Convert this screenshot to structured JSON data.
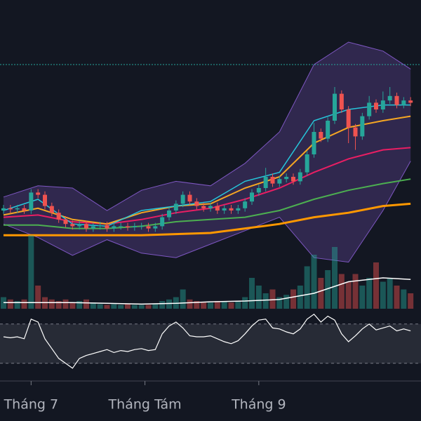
{
  "chart_data": {
    "type": "candlestick",
    "xlim": [
      -0.5,
      59.5
    ],
    "ylim": [
      0,
      100
    ],
    "xticks": [
      {
        "value": 4,
        "label": "Tháng 7"
      },
      {
        "value": 20.5,
        "label": "Tháng Tám"
      },
      {
        "value": 37,
        "label": "Tháng 9"
      }
    ],
    "up_color": "#26a69a",
    "down_color": "#ef5350",
    "open": [
      25,
      26,
      25.5,
      26,
      25,
      33,
      32,
      27,
      24,
      21,
      19,
      18,
      19,
      17,
      18,
      18.5,
      17,
      18,
      18,
      17.5,
      18,
      18,
      17,
      18,
      22,
      25,
      28,
      32,
      29,
      27,
      26,
      27,
      25,
      26,
      25,
      26,
      29,
      33,
      35,
      40,
      37,
      39,
      40,
      38,
      42,
      50,
      60,
      57,
      65,
      77,
      70,
      62,
      58,
      67,
      73,
      70,
      74,
      76,
      72,
      74
    ],
    "high": [
      27.5,
      27.5,
      27.5,
      27.5,
      34.5,
      34.5,
      33.5,
      28.5,
      25.5,
      22.5,
      20.5,
      20.5,
      20.5,
      19.5,
      20,
      20,
      19.5,
      19.5,
      19.5,
      19.5,
      19.5,
      19.5,
      19.5,
      23.5,
      26.5,
      29.5,
      33.5,
      33.5,
      30.5,
      28.5,
      28.5,
      28.5,
      27.5,
      27.5,
      27.5,
      30.5,
      34.5,
      36.5,
      44,
      41.5,
      40.5,
      41.5,
      41.5,
      43.5,
      51.5,
      64,
      61.5,
      66.5,
      80,
      78.5,
      71.5,
      63.5,
      68.5,
      76,
      74.5,
      78,
      80,
      77.5,
      75.5,
      75.5
    ],
    "low": [
      23.5,
      24,
      24,
      23.5,
      23.5,
      30.5,
      25.5,
      22.5,
      19.5,
      17.5,
      16.5,
      16.5,
      15.5,
      15.5,
      16.5,
      15.5,
      15.5,
      16.5,
      16,
      16,
      16.5,
      15.5,
      15.5,
      16.5,
      20.5,
      23.5,
      26.5,
      27.5,
      25.5,
      24.5,
      24.5,
      23.5,
      23.5,
      23.5,
      23.5,
      24.5,
      27.5,
      31.5,
      33.5,
      35.5,
      35.5,
      37.5,
      36.5,
      36.5,
      40.5,
      48.5,
      55.5,
      55.5,
      63.5,
      68.5,
      55,
      52,
      56.5,
      65.5,
      68.5,
      68.5,
      72.5,
      70.5,
      70.5,
      71.5
    ],
    "close": [
      26,
      25.5,
      26,
      25,
      33,
      32,
      27,
      24,
      21,
      19,
      18,
      19,
      17,
      18,
      18.5,
      17,
      18,
      18,
      17.5,
      18,
      18,
      17,
      18,
      22,
      25,
      28,
      32,
      29,
      27,
      26,
      27,
      25,
      26,
      25,
      26,
      29,
      33,
      35,
      40,
      37,
      39,
      40,
      38,
      42,
      50,
      60,
      57,
      65,
      77,
      70,
      62,
      58,
      67,
      73,
      70,
      74,
      76,
      72,
      74,
      73
    ],
    "line_x": [
      0,
      5,
      10,
      15,
      20,
      25,
      30,
      35,
      40,
      45,
      50,
      55,
      59
    ],
    "band": {
      "color": "#7e57c2",
      "upper": [
        31,
        36,
        35,
        25,
        34,
        38,
        36,
        46,
        60,
        90,
        100,
        96,
        88
      ],
      "lower": [
        19,
        13,
        5,
        12,
        6,
        4,
        10,
        16,
        22,
        4,
        2,
        25,
        47
      ]
    },
    "lines": [
      {
        "color": "#ff9800",
        "width": 3,
        "values": [
          14,
          14,
          14,
          14,
          14,
          14.5,
          15,
          17,
          19,
          22,
          24,
          27,
          28
        ]
      },
      {
        "color": "#4caf50",
        "width": 2,
        "values": [
          18.5,
          18.5,
          17,
          17,
          18,
          20,
          21,
          22,
          25,
          30,
          34,
          37,
          39
        ]
      },
      {
        "color": "#e91e63",
        "width": 2,
        "values": [
          22,
          23,
          20,
          19,
          21,
          24,
          26,
          30,
          35,
          42,
          48,
          52,
          53
        ]
      },
      {
        "color": "#f5a623",
        "width": 2,
        "values": [
          23,
          26,
          21,
          19,
          24,
          27,
          28,
          35,
          40,
          55,
          62,
          65,
          67
        ]
      },
      {
        "color": "#26c6da",
        "width": 1.5,
        "values": [
          25,
          30,
          19,
          18,
          25,
          27,
          29,
          38,
          42,
          65,
          70,
          72,
          72
        ]
      }
    ],
    "level": {
      "value": 90,
      "color": "#26a69a"
    },
    "volume": {
      "ylim": [
        0,
        100
      ],
      "ma_color": "#ffffff",
      "values": [
        15,
        12,
        10,
        12,
        95,
        30,
        15,
        12,
        10,
        12,
        8,
        10,
        12,
        8,
        6,
        5,
        6,
        5,
        6,
        5,
        5,
        5,
        6,
        10,
        12,
        15,
        25,
        12,
        10,
        8,
        8,
        10,
        10,
        8,
        10,
        15,
        40,
        30,
        20,
        25,
        15,
        18,
        25,
        30,
        55,
        70,
        40,
        50,
        80,
        45,
        35,
        45,
        30,
        40,
        60,
        35,
        40,
        30,
        25,
        20
      ],
      "ma_values": [
        8,
        8,
        8,
        7,
        6,
        7,
        9,
        10,
        12,
        20,
        35,
        40,
        38
      ]
    },
    "oscillator": {
      "ylim": [
        12,
        82
      ],
      "levels": [
        70,
        30
      ],
      "color": "#ffffff",
      "values": [
        57,
        56,
        57,
        55,
        75,
        72,
        55,
        45,
        35,
        30,
        25,
        35,
        38,
        40,
        42,
        44,
        41,
        43,
        42,
        44,
        45,
        43,
        44,
        60,
        68,
        72,
        66,
        58,
        57,
        57,
        58,
        55,
        52,
        50,
        53,
        60,
        68,
        74,
        75,
        66,
        65,
        62,
        60,
        65,
        75,
        80,
        72,
        78,
        74,
        60,
        52,
        58,
        65,
        70,
        64,
        66,
        68,
        63,
        65,
        63
      ]
    }
  }
}
